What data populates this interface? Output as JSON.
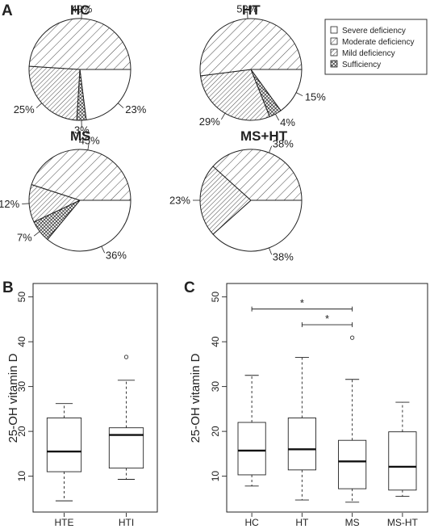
{
  "figure": {
    "panel_a": "A",
    "panel_b": "B",
    "panel_c": "C"
  },
  "legend": {
    "items": [
      {
        "label": "Severe deficiency",
        "pattern": "blank"
      },
      {
        "label": "Moderate deficiency",
        "pattern": "sparse-hatch"
      },
      {
        "label": "Mild deficiency",
        "pattern": "dense-hatch"
      },
      {
        "label": "Sufficiency",
        "pattern": "crosshatch"
      }
    ]
  },
  "chart_data": [
    {
      "type": "pie",
      "title": "HC",
      "slices": [
        {
          "category": "Severe deficiency",
          "value": 23,
          "label": "23%"
        },
        {
          "category": "Sufficiency",
          "value": 3,
          "label": "3%"
        },
        {
          "category": "Mild deficiency",
          "value": 25,
          "label": "25%"
        },
        {
          "category": "Moderate deficiency",
          "value": 49,
          "label": "49%"
        }
      ]
    },
    {
      "type": "pie",
      "title": "HT",
      "slices": [
        {
          "category": "Severe deficiency",
          "value": 15,
          "label": "15%"
        },
        {
          "category": "Sufficiency",
          "value": 4,
          "label": "4%"
        },
        {
          "category": "Mild deficiency",
          "value": 29,
          "label": "29%"
        },
        {
          "category": "Moderate deficiency",
          "value": 52,
          "label": "52%"
        }
      ]
    },
    {
      "type": "pie",
      "title": "MS",
      "slices": [
        {
          "category": "Severe deficiency",
          "value": 36,
          "label": "36%"
        },
        {
          "category": "Sufficiency",
          "value": 7,
          "label": "7%"
        },
        {
          "category": "Mild deficiency",
          "value": 12,
          "label": "12%"
        },
        {
          "category": "Moderate deficiency",
          "value": 45,
          "label": "45%"
        }
      ]
    },
    {
      "type": "pie",
      "title": "MS+HT",
      "slices": [
        {
          "category": "Severe deficiency",
          "value": 38,
          "label": "38%"
        },
        {
          "category": "Sufficiency",
          "value": 0,
          "label": ""
        },
        {
          "category": "Mild deficiency",
          "value": 23,
          "label": "23%"
        },
        {
          "category": "Moderate deficiency",
          "value": 38,
          "label": "38%"
        }
      ]
    },
    {
      "type": "boxplot",
      "panel": "B",
      "ylabel": "25-OH vitamin D",
      "ylim": [
        2,
        53
      ],
      "yticks": [
        10,
        20,
        30,
        40,
        50
      ],
      "categories": [
        "HTE",
        "HTI"
      ],
      "boxes": [
        {
          "name": "HTE",
          "whisker_low": 4.5,
          "q1": 11,
          "median": 15.5,
          "q3": 23,
          "whisker_high": 26.2,
          "outliers": []
        },
        {
          "name": "HTI",
          "whisker_low": 9.3,
          "q1": 11.8,
          "median": 19.2,
          "q3": 20.8,
          "whisker_high": 31.4,
          "outliers": [
            36.6
          ]
        }
      ]
    },
    {
      "type": "boxplot",
      "panel": "C",
      "ylabel": "25-OH vitamin D",
      "ylim": [
        2,
        53
      ],
      "yticks": [
        10,
        20,
        30,
        40,
        50
      ],
      "categories": [
        "HC",
        "HT",
        "MS",
        "MS-HT"
      ],
      "boxes": [
        {
          "name": "HC",
          "whisker_low": 7.8,
          "q1": 10.3,
          "median": 15.7,
          "q3": 22,
          "whisker_high": 32.5,
          "outliers": []
        },
        {
          "name": "HT",
          "whisker_low": 4.7,
          "q1": 11.4,
          "median": 16,
          "q3": 23,
          "whisker_high": 36.5,
          "outliers": []
        },
        {
          "name": "MS",
          "whisker_low": 4.2,
          "q1": 7.2,
          "median": 13.3,
          "q3": 18,
          "whisker_high": 31.6,
          "outliers": [
            40.9
          ]
        },
        {
          "name": "MS-HT",
          "whisker_low": 5.5,
          "q1": 6.9,
          "median": 12.1,
          "q3": 19.9,
          "whisker_high": 26.5,
          "outliers": []
        }
      ],
      "significance": [
        {
          "from": "HC",
          "to": "MS",
          "y": 47.3,
          "label": "*"
        },
        {
          "from": "HT",
          "to": "MS",
          "y": 43.8,
          "label": "*"
        }
      ]
    }
  ]
}
